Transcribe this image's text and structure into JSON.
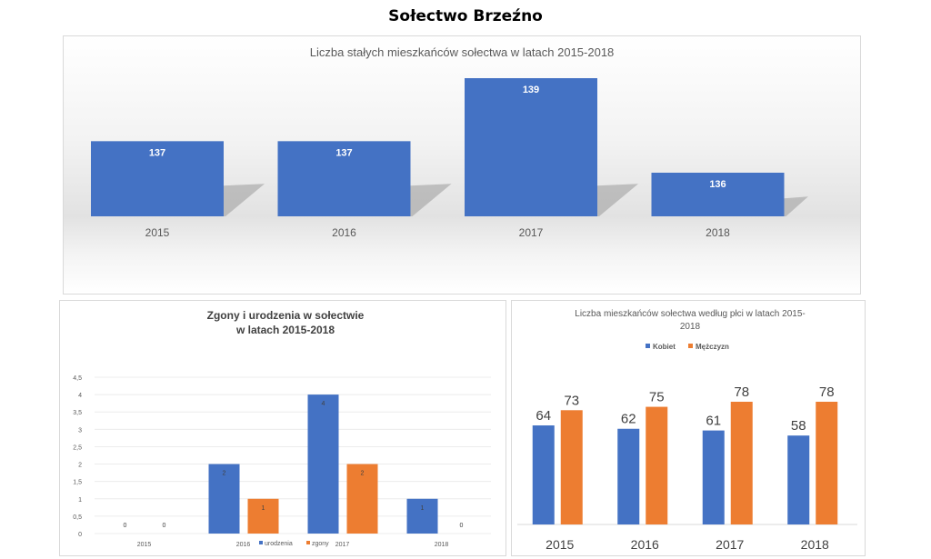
{
  "page": {
    "title": "Sołectwo Brzeźno"
  },
  "chart_data": [
    {
      "id": "residents",
      "type": "bar",
      "title": "Liczba stałych mieszkańców sołectwa  w latach 2015-2018",
      "categories": [
        "2015",
        "2016",
        "2017",
        "2018"
      ],
      "values": [
        137,
        137,
        139,
        136
      ],
      "value_labels": [
        "137",
        "137",
        "139",
        "136"
      ],
      "xlabel": "",
      "ylabel": "",
      "ylim": [
        134,
        139
      ],
      "grid": false,
      "legend": "none",
      "colors": {
        "bar": "#4472c4",
        "label": "#ffffff",
        "axis_text": "#595959"
      }
    },
    {
      "id": "births-deaths",
      "type": "bar",
      "title": "Zgony i urodzenia w sołectwie\nw latach 2015-2018",
      "title_lines": [
        "Zgony i urodzenia w sołectwie",
        "w latach 2015-2018"
      ],
      "categories": [
        "2015",
        "2016",
        "2017",
        "2018"
      ],
      "series": [
        {
          "name": "urodzenia",
          "values": [
            0,
            2,
            4,
            1
          ],
          "color": "#4472c4"
        },
        {
          "name": "zgony",
          "values": [
            0,
            1,
            2,
            0
          ],
          "color": "#ed7d31"
        }
      ],
      "yticks": [
        "0",
        "0,5",
        "1",
        "1,5",
        "2",
        "2,5",
        "3",
        "3,5",
        "4",
        "4,5"
      ],
      "ylim": [
        0,
        4.5
      ],
      "grid": true,
      "legend": "bottom-inline"
    },
    {
      "id": "by-gender",
      "type": "bar",
      "title": "Liczba mieszkańców sołectwa według płci w latach 2015-2018",
      "title_lines": [
        "Liczba mieszkańców sołectwa według płci w latach 2015-",
        "2018"
      ],
      "categories": [
        "2015",
        "2016",
        "2017",
        "2018"
      ],
      "series": [
        {
          "name": "Kobiet",
          "values": [
            64,
            62,
            61,
            58
          ],
          "color": "#4472c4"
        },
        {
          "name": "Mężczyzn",
          "values": [
            73,
            75,
            78,
            78
          ],
          "color": "#ed7d31"
        }
      ],
      "ylim": [
        0,
        90
      ],
      "grid": false,
      "legend": "top"
    }
  ]
}
